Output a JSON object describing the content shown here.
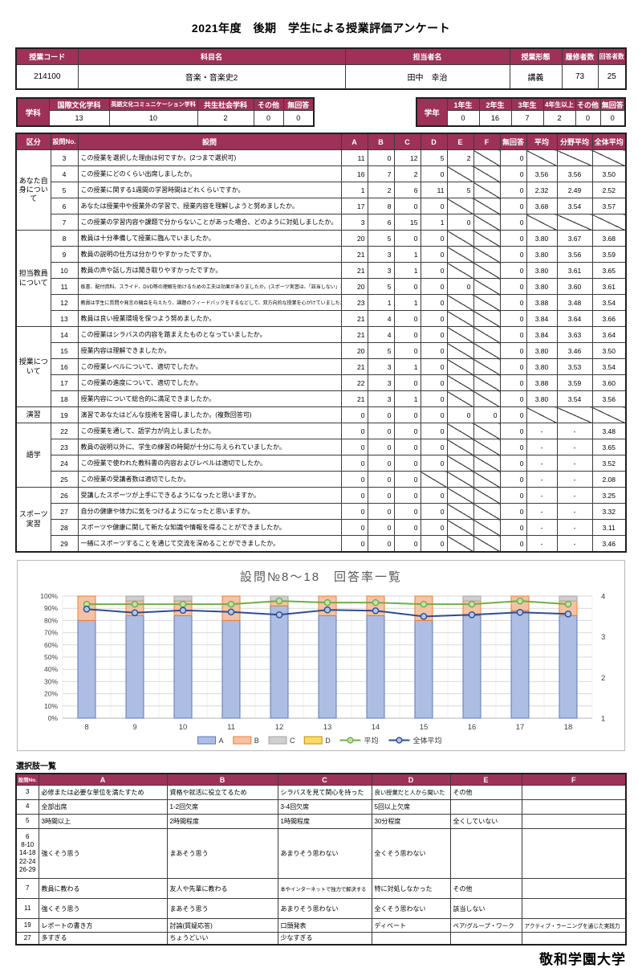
{
  "title": "2021年度　後期　学生による授業評価アンケート",
  "course_info": {
    "headers": [
      "授業コード",
      "科目名",
      "担当者名",
      "授業形態",
      "履修者数",
      "回答者数"
    ],
    "values": [
      "214100",
      "音楽・音楽史2",
      "田中　幸治",
      "講義",
      "73",
      "25"
    ]
  },
  "department": {
    "label": "学科",
    "columns": [
      "国際文化学科",
      "英語文化コミュニケーション学科",
      "共生社会学科",
      "その他",
      "無回答"
    ],
    "values": [
      "13",
      "10",
      "2",
      "0",
      "0"
    ]
  },
  "grade": {
    "label": "学年",
    "columns": [
      "1年生",
      "2年生",
      "3年生",
      "4年生以上",
      "その他",
      "無回答"
    ],
    "values": [
      "0",
      "16",
      "7",
      "2",
      "0",
      "0"
    ]
  },
  "survey_table": {
    "headers": [
      "区分",
      "設問No.",
      "設問",
      "A",
      "B",
      "C",
      "D",
      "E",
      "F",
      "無回答",
      "平均",
      "分野平均",
      "全体平均"
    ],
    "sections": [
      {
        "label": "あなた自身について",
        "rows": [
          {
            "no": "3",
            "q": "この授業を選択した理由は何ですか。(2つまで選択可)",
            "cells": [
              "11",
              "0",
              "12",
              "5",
              "2",
              "/",
              "0",
              "/",
              "/",
              "/"
            ]
          },
          {
            "no": "4",
            "q": "この授業にどのくらい出席しましたか。",
            "cells": [
              "16",
              "7",
              "2",
              "0",
              "/",
              "/",
              "0",
              "3.56",
              "3.56",
              "3.50"
            ]
          },
          {
            "no": "5",
            "q": "この授業に関する1週間の学習時間はどれくらいですか。",
            "cells": [
              "1",
              "2",
              "6",
              "11",
              "5",
              "/",
              "0",
              "2.32",
              "2.49",
              "2.52"
            ]
          },
          {
            "no": "6",
            "q": "あなたは授業中や授業外の学習で、授業内容を理解しようと努めましたか。",
            "cells": [
              "17",
              "8",
              "0",
              "0",
              "/",
              "/",
              "0",
              "3.68",
              "3.54",
              "3.57"
            ]
          },
          {
            "no": "7",
            "q": "この授業の学習内容や課題で分からないことがあった場合、どのように対処しましたか。",
            "cells": [
              "3",
              "6",
              "15",
              "1",
              "0",
              "/",
              "0",
              "/",
              "/",
              "/"
            ]
          }
        ]
      },
      {
        "label": "担当教員について",
        "rows": [
          {
            "no": "8",
            "q": "教員は十分準備して授業に臨んでいましたか。",
            "cells": [
              "20",
              "5",
              "0",
              "0",
              "/",
              "/",
              "0",
              "3.80",
              "3.67",
              "3.68"
            ]
          },
          {
            "no": "9",
            "q": "教員の説明の仕方は分かりやすかったですか。",
            "cells": [
              "21",
              "3",
              "1",
              "0",
              "/",
              "/",
              "0",
              "3.80",
              "3.56",
              "3.59"
            ]
          },
          {
            "no": "10",
            "q": "教員の声や話し方は聞き取りやすかったですか。",
            "cells": [
              "21",
              "3",
              "1",
              "0",
              "/",
              "/",
              "0",
              "3.80",
              "3.61",
              "3.65"
            ]
          },
          {
            "no": "11",
            "q": "板書、配付資料、スライド、DVD等の理解を助けるための工夫は効果がありましたか。(スポーツ実習は、「該当しない」を選んでください)",
            "cells": [
              "20",
              "5",
              "0",
              "0",
              "0",
              "/",
              "0",
              "3.80",
              "3.60",
              "3.61"
            ]
          },
          {
            "no": "12",
            "q": "教員は学生に質問や発言の機会を与えたり、課題のフィードバックをするなどして、双方向的な授業を心がけていましたか。",
            "cells": [
              "23",
              "1",
              "1",
              "0",
              "/",
              "/",
              "0",
              "3.88",
              "3.48",
              "3.54"
            ]
          },
          {
            "no": "13",
            "q": "教員は良い授業環境を保つよう努めましたか。",
            "cells": [
              "21",
              "4",
              "0",
              "0",
              "/",
              "/",
              "0",
              "3.84",
              "3.64",
              "3.66"
            ]
          }
        ]
      },
      {
        "label": "授業について",
        "rows": [
          {
            "no": "14",
            "q": "この授業はシラバスの内容を踏まえたものとなっていましたか。",
            "cells": [
              "21",
              "4",
              "0",
              "0",
              "/",
              "/",
              "0",
              "3.84",
              "3.63",
              "3.64"
            ]
          },
          {
            "no": "15",
            "q": "授業内容は理解できましたか。",
            "cells": [
              "20",
              "5",
              "0",
              "0",
              "/",
              "/",
              "0",
              "3.80",
              "3.46",
              "3.50"
            ]
          },
          {
            "no": "16",
            "q": "この授業レベルについて、適切でしたか。",
            "cells": [
              "21",
              "3",
              "1",
              "0",
              "/",
              "/",
              "0",
              "3.80",
              "3.53",
              "3.54"
            ]
          },
          {
            "no": "17",
            "q": "この授業の進度について、適切でしたか。",
            "cells": [
              "22",
              "3",
              "0",
              "0",
              "/",
              "/",
              "0",
              "3.88",
              "3.59",
              "3.60"
            ]
          },
          {
            "no": "18",
            "q": "授業内容について総合的に満足できましたか。",
            "cells": [
              "21",
              "3",
              "1",
              "0",
              "/",
              "/",
              "0",
              "3.80",
              "3.54",
              "3.56"
            ]
          }
        ]
      },
      {
        "label": "演習",
        "rows": [
          {
            "no": "19",
            "q": "演習であなたはどんな技術を習得しましたか。(複数回答可)",
            "cells": [
              "0",
              "0",
              "0",
              "0",
              "0",
              "0",
              "0",
              "/",
              "/",
              "/"
            ]
          }
        ]
      },
      {
        "label": "語学",
        "rows": [
          {
            "no": "22",
            "q": "この授業を通して、語学力が向上しましたか。",
            "cells": [
              "0",
              "0",
              "0",
              "0",
              "/",
              "/",
              "0",
              "-",
              "-",
              "3.48"
            ]
          },
          {
            "no": "23",
            "q": "教員の説明以外に、学生の練習の時間が十分に与えられていましたか。",
            "cells": [
              "0",
              "0",
              "0",
              "0",
              "/",
              "/",
              "0",
              "-",
              "-",
              "3.65"
            ]
          },
          {
            "no": "24",
            "q": "この授業で使われた教科書の内容およびレベルは適切でしたか。",
            "cells": [
              "0",
              "0",
              "0",
              "0",
              "/",
              "/",
              "0",
              "-",
              "-",
              "3.52"
            ]
          },
          {
            "no": "25",
            "q": "この授業の受講者数は適切でしたか。",
            "cells": [
              "0",
              "0",
              "0",
              "/",
              "/",
              "/",
              "0",
              "-",
              "-",
              "2.08"
            ]
          }
        ]
      },
      {
        "label": "スポーツ実習",
        "rows": [
          {
            "no": "26",
            "q": "受講したスポーツが上手にできるようになったと思いますか。",
            "cells": [
              "0",
              "0",
              "0",
              "0",
              "/",
              "/",
              "0",
              "-",
              "-",
              "3.25"
            ]
          },
          {
            "no": "27",
            "q": "自分の健康や体力に気をつけるようになったと思いますか。",
            "cells": [
              "0",
              "0",
              "0",
              "0",
              "/",
              "/",
              "0",
              "-",
              "-",
              "3.32"
            ]
          },
          {
            "no": "28",
            "q": "スポーツや健康に関して新たな知識や情報を得ることができましたか。",
            "cells": [
              "0",
              "0",
              "0",
              "0",
              "/",
              "/",
              "0",
              "-",
              "-",
              "3.11"
            ]
          },
          {
            "no": "29",
            "q": "一緒にスポーツすることを通じて交流を深めることができましたか。",
            "cells": [
              "0",
              "0",
              "0",
              "0",
              "/",
              "/",
              "0",
              "-",
              "-",
              "3.46"
            ]
          }
        ]
      }
    ]
  },
  "chart_data": {
    "type": "bar",
    "subtype": "stacked-bar-with-lines",
    "title": "設問№8～18　回答率一覧",
    "categories": [
      "8",
      "9",
      "10",
      "11",
      "12",
      "13",
      "14",
      "15",
      "16",
      "17",
      "18"
    ],
    "series": [
      {
        "name": "A",
        "type": "bar",
        "values": [
          80,
          84,
          84,
          80,
          92,
          84,
          84,
          80,
          84,
          88,
          84
        ]
      },
      {
        "name": "B",
        "type": "bar",
        "values": [
          20,
          12,
          12,
          20,
          4,
          16,
          16,
          20,
          12,
          12,
          12
        ]
      },
      {
        "name": "C",
        "type": "bar",
        "values": [
          0,
          4,
          4,
          0,
          4,
          0,
          0,
          0,
          4,
          0,
          4
        ]
      },
      {
        "name": "D",
        "type": "bar",
        "values": [
          0,
          0,
          0,
          0,
          0,
          0,
          0,
          0,
          0,
          0,
          0
        ]
      },
      {
        "name": "平均",
        "type": "line",
        "axis": "right",
        "values": [
          3.8,
          3.8,
          3.8,
          3.8,
          3.88,
          3.84,
          3.84,
          3.8,
          3.8,
          3.88,
          3.8
        ]
      },
      {
        "name": "全体平均",
        "type": "line",
        "axis": "right",
        "values": [
          3.68,
          3.59,
          3.65,
          3.61,
          3.54,
          3.66,
          3.64,
          3.5,
          3.54,
          3.6,
          3.56
        ]
      }
    ],
    "left_axis": {
      "min": 0,
      "max": 100,
      "step": 10,
      "unit": "%"
    },
    "right_axis": {
      "min": 1,
      "max": 4,
      "ticks": [
        1,
        2,
        3,
        4
      ]
    },
    "legend_position": "bottom",
    "grid": true
  },
  "choices_table": {
    "label": "選択肢一覧",
    "headers": [
      "設問No.",
      "A",
      "B",
      "C",
      "D",
      "E",
      "F"
    ],
    "rows": [
      {
        "no": "3",
        "cells": [
          "必修または必要な単位を満たすため",
          "資格や就活に役立てるため",
          "シラバスを見て関心を持った",
          "良い授業だと人から聞いた",
          "その他",
          ""
        ]
      },
      {
        "no": "4",
        "cells": [
          "全部出席",
          "1-2回欠席",
          "3-4回欠席",
          "5回以上欠席",
          "",
          ""
        ]
      },
      {
        "no": "5",
        "cells": [
          "3時間以上",
          "2時間程度",
          "1時間程度",
          "30分程度",
          "全くしていない",
          ""
        ]
      },
      {
        "no": "6\n8-10\n14-18\n22-24\n26-29",
        "cells": [
          "強くそう思う",
          "まあそう思う",
          "あまりそう思わない",
          "全くそう思わない",
          "",
          ""
        ]
      },
      {
        "no": "7",
        "cells": [
          "教員に教わる",
          "友人や先輩に教わる",
          "本やインターネットで独力で解決する",
          "特に対処しなかった",
          "その他",
          ""
        ]
      },
      {
        "no": "11",
        "cells": [
          "強くそう思う",
          "まあそう思う",
          "あまりそう思わない",
          "全くそう思わない",
          "該当しない",
          ""
        ]
      },
      {
        "no": "19",
        "cells": [
          "レポートの書き方",
          "討論(質疑応答)",
          "口頭発表",
          "ディベート",
          "ペア/グループ・ワーク",
          "アクティブ・ラーニングを通じた実践力"
        ]
      },
      {
        "no": "27",
        "cells": [
          "多すぎる",
          "ちょうどいい",
          "少なすぎる",
          "",
          "",
          ""
        ]
      }
    ]
  },
  "footer_logo": "敬和学園大学",
  "colors": {
    "header_bg": "#9e3158",
    "series_a_fill": "#aebde3",
    "series_a_border": "#5b79b8",
    "series_b_fill": "#f5c3a3",
    "series_b_border": "#ed7d31",
    "series_c_fill": "#cfcfcf",
    "series_c_border": "#a6a6a6",
    "series_d_fill": "#ffd966",
    "series_d_border": "#bf8f00",
    "line_avg": "#70ad47",
    "line_avg_fill": "#c5e0b4",
    "line_overall": "#2e4d8e",
    "line_overall_fill": "#b4c7e7",
    "gridline": "#d9d9d9",
    "axis_text": "#404040",
    "chart_title": "#595959"
  }
}
